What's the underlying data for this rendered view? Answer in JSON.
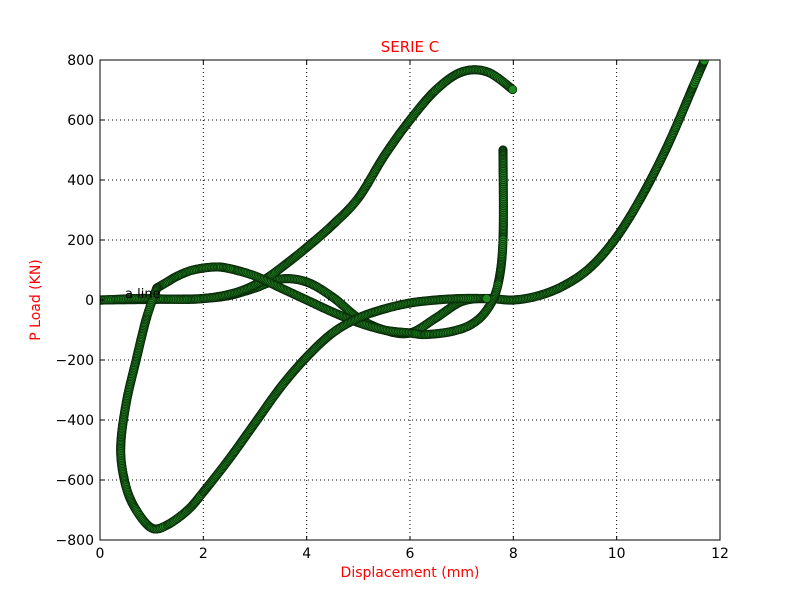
{
  "chart_data": {
    "type": "scatter",
    "title": "SERIE C",
    "xlabel": "Displacement (mm)",
    "ylabel": "P Load (KN)",
    "xlim": [
      0,
      12
    ],
    "ylim": [
      -800,
      800
    ],
    "x_ticks": [
      "0",
      "2",
      "4",
      "6",
      "8",
      "10",
      "12"
    ],
    "y_ticks": [
      "800",
      "600",
      "400",
      "200",
      "0",
      "−200",
      "−400",
      "−600",
      "−800"
    ],
    "grid": true,
    "annotation": "a line",
    "colors": {
      "title": "#ff0000",
      "axis_labels": "#ff0000",
      "marker_fill": "#1f8a1f",
      "marker_edge": "#0a2a0a"
    },
    "series": [
      {
        "x": [
          0.0,
          0.5,
          1.0,
          1.5,
          2.0,
          2.5,
          3.0,
          3.5,
          4.0,
          4.5,
          5.0,
          5.5,
          6.0,
          6.5,
          7.0,
          7.5,
          8.0,
          8.5,
          9.0,
          9.5,
          10.0,
          10.5,
          11.0,
          11.5,
          11.7
        ],
        "y": [
          0,
          1,
          2,
          3,
          5,
          15,
          40,
          70,
          60,
          10,
          -60,
          -100,
          -110,
          -60,
          -5,
          5,
          0,
          15,
          50,
          110,
          210,
          350,
          520,
          720,
          800
        ]
      },
      {
        "x": [
          0.0,
          0.3,
          0.7,
          1.0,
          1.3,
          1.7,
          2.0,
          2.4,
          2.8,
          3.2,
          3.6,
          4.0,
          4.5,
          5.0,
          5.5,
          6.0,
          6.5,
          7.0,
          7.5,
          8.0
        ],
        "y": [
          0,
          2,
          5,
          5,
          3,
          2,
          5,
          15,
          35,
          70,
          120,
          175,
          250,
          340,
          480,
          600,
          700,
          760,
          760,
          700
        ]
      },
      {
        "x": [
          7.8,
          7.8,
          7.7,
          7.5,
          7.2,
          6.8,
          6.3,
          6.0,
          5.5,
          5.0,
          4.5,
          4.0,
          3.5,
          3.0,
          2.5,
          2.2,
          1.8,
          1.5,
          1.3,
          1.1
        ],
        "y": [
          500,
          200,
          50,
          -30,
          -80,
          -105,
          -115,
          -110,
          -100,
          -75,
          -40,
          0,
          40,
          80,
          105,
          110,
          100,
          80,
          60,
          40
        ]
      },
      {
        "x": [
          1.1,
          0.9,
          0.7,
          0.5,
          0.4,
          0.5,
          0.7,
          1.0,
          1.3,
          1.7,
          2.0,
          2.5,
          3.0,
          3.5,
          4.0,
          4.5,
          5.0,
          5.5,
          6.0,
          6.5,
          7.0,
          7.5
        ],
        "y": [
          40,
          -60,
          -200,
          -350,
          -500,
          -620,
          -700,
          -760,
          -750,
          -700,
          -640,
          -530,
          -410,
          -290,
          -190,
          -110,
          -60,
          -30,
          -10,
          0,
          5,
          5
        ]
      }
    ]
  }
}
